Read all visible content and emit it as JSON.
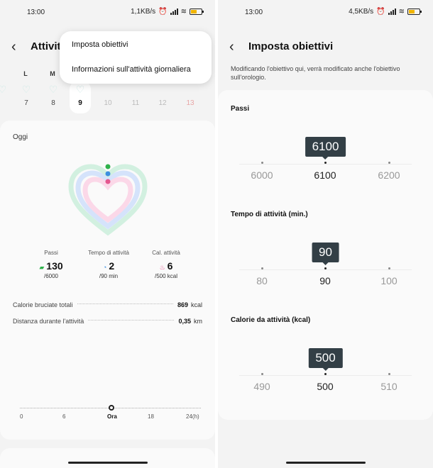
{
  "left": {
    "status": {
      "time": "13:00",
      "speed": "1,1KB/s"
    },
    "header": {
      "title_partial": "Attivit"
    },
    "menu": {
      "items": [
        "Imposta obiettivi",
        "Informazioni sull'attività giornaliera"
      ]
    },
    "weekdays": [
      "L",
      "M"
    ],
    "days": [
      {
        "num": "7"
      },
      {
        "num": "8"
      },
      {
        "num": "9",
        "selected": true
      },
      {
        "num": "10"
      },
      {
        "num": "11"
      },
      {
        "num": "12"
      },
      {
        "num": "13"
      }
    ],
    "card": {
      "today_label": "Oggi",
      "stats": [
        {
          "label": "Passi",
          "value": "130",
          "goal": "/6000",
          "icon": "shoe-icon",
          "color": "#2fb14b"
        },
        {
          "label": "Tempo di attività",
          "value": "2",
          "goal": "/90 min",
          "icon": "clock-icon",
          "color": "#3d8fe0"
        },
        {
          "label": "Cal. attività",
          "value": "6",
          "goal": "/500 kcal",
          "icon": "flame-icon",
          "color": "#e4578f"
        }
      ],
      "rows": [
        {
          "label": "Calorie bruciate totali",
          "value": "869",
          "unit": "kcal"
        },
        {
          "label": "Distanza durante l'attività",
          "value": "0,35",
          "unit": "km"
        }
      ],
      "timeline": {
        "labels": [
          "0",
          "6",
          "Ora",
          "18",
          "24(h)"
        ]
      }
    }
  },
  "right": {
    "status": {
      "time": "13:00",
      "speed": "4,5KB/s"
    },
    "header": {
      "title": "Imposta obiettivi"
    },
    "description": "Modificando l'obiettivo qui, verrà modificato anche l'obiettivo sull'orologio.",
    "pickers": [
      {
        "label": "Passi",
        "prev": "6000",
        "current": "6100",
        "next": "6200"
      },
      {
        "label": "Tempo di attività (min.)",
        "prev": "80",
        "current": "90",
        "next": "100"
      },
      {
        "label": "Calorie da attività (kcal)",
        "prev": "490",
        "current": "500",
        "next": "510"
      }
    ]
  },
  "colors": {
    "steps": "#2fb14b",
    "time": "#3d8fe0",
    "calories": "#e4578f",
    "bubble": "#333f46"
  }
}
